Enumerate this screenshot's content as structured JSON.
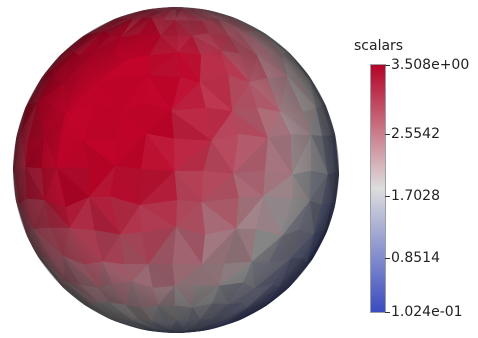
{
  "colorbar": {
    "title": "scalars",
    "min": 0.1024,
    "max": 3.508,
    "ticks": [
      {
        "label": "3.508e+00",
        "value": 3.508
      },
      {
        "label": "2.5542",
        "value": 2.5542
      },
      {
        "label": "1.7028",
        "value": 1.7028
      },
      {
        "label": "0.8514",
        "value": 0.8514
      },
      {
        "label": "1.024e-01",
        "value": 0.1024
      }
    ],
    "colors": {
      "low": "#3b4cc0",
      "mid": "#dddddd",
      "high": "#b40426"
    }
  },
  "sphere": {
    "hotspot": {
      "lon_deg": -35,
      "lat_deg": 25
    },
    "edge_shade": "#1a1a2a"
  }
}
